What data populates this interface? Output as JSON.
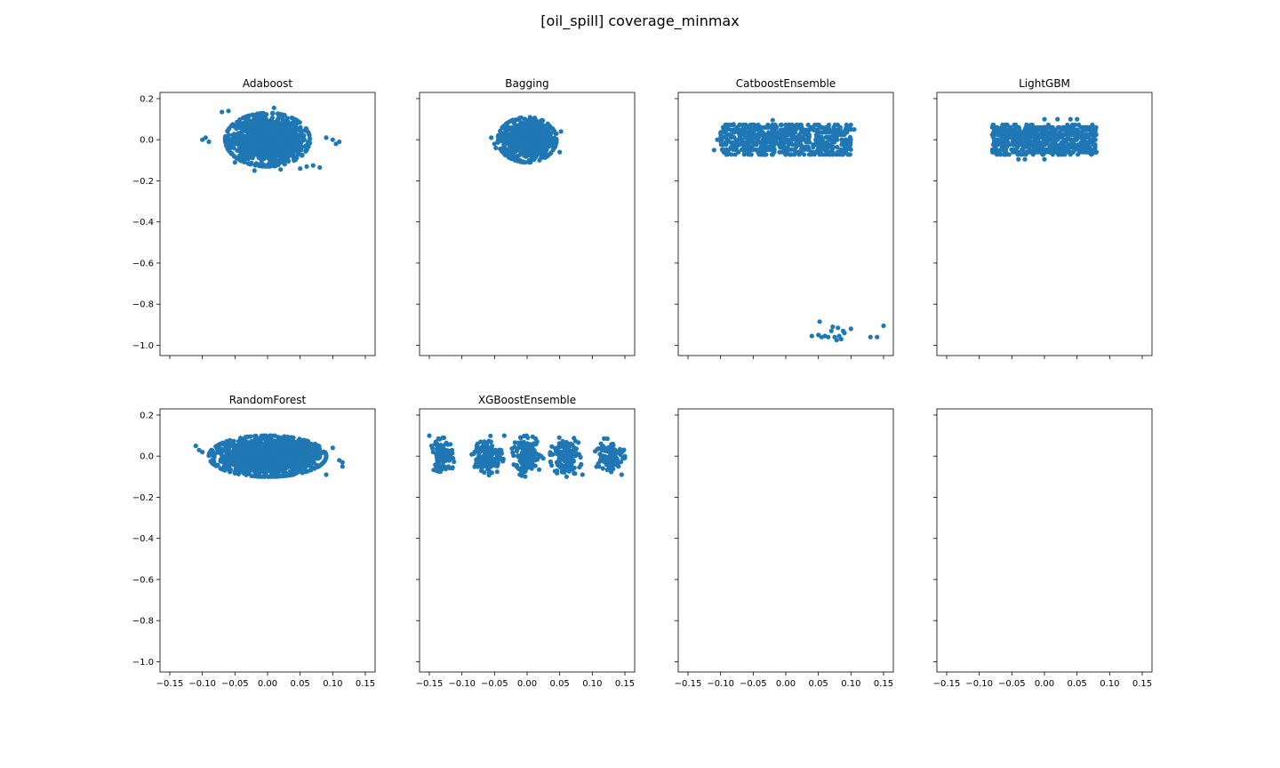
{
  "figure": {
    "suptitle": "[oil_spill] coverage_minmax"
  },
  "chart_data": {
    "type": "scatter",
    "layout": "2 rows x 4 columns, shared x and y axes",
    "xlim": [
      -0.165,
      0.165
    ],
    "ylim": [
      -1.05,
      0.23
    ],
    "x_ticks": [
      -0.15,
      -0.1,
      -0.05,
      0.0,
      0.05,
      0.1,
      0.15
    ],
    "x_tick_labels": [
      "−0.15",
      "−0.10",
      "−0.05",
      "0.00",
      "0.05",
      "0.10",
      "0.15"
    ],
    "y_ticks": [
      0.2,
      0.0,
      -0.2,
      -0.4,
      -0.6,
      -0.8,
      -1.0
    ],
    "y_tick_labels": [
      "0.2",
      "0.0",
      "−0.2",
      "−0.4",
      "−0.6",
      "−0.8",
      "−1.0"
    ],
    "marker_color": "#1f77b4",
    "grid": false,
    "legend": "none",
    "panels": [
      {
        "title": "Adaboost",
        "clusters": [
          {
            "shape": "ellipse",
            "cx": 0.0,
            "cy": 0.0,
            "rx": 0.065,
            "ry": 0.13,
            "n": 1400
          }
        ],
        "points": [
          [
            -0.1,
            0.0
          ],
          [
            -0.095,
            0.01
          ],
          [
            -0.09,
            -0.01
          ],
          [
            -0.07,
            0.135
          ],
          [
            -0.06,
            0.14
          ],
          [
            0.01,
            0.155
          ],
          [
            0.1,
            0.0
          ],
          [
            0.11,
            -0.01
          ],
          [
            0.105,
            -0.02
          ],
          [
            0.09,
            0.01
          ],
          [
            0.06,
            -0.13
          ],
          [
            0.05,
            -0.14
          ],
          [
            -0.02,
            -0.15
          ],
          [
            0.02,
            -0.145
          ],
          [
            0.08,
            -0.135
          ],
          [
            0.07,
            -0.125
          ],
          [
            -0.05,
            -0.11
          ]
        ]
      },
      {
        "title": "Bagging",
        "clusters": [
          {
            "shape": "ellipse",
            "cx": 0.0,
            "cy": 0.0,
            "rx": 0.045,
            "ry": 0.11,
            "n": 1000
          }
        ],
        "points": [
          [
            -0.055,
            0.01
          ],
          [
            -0.05,
            -0.02
          ],
          [
            0.052,
            0.04
          ],
          [
            0.05,
            -0.06
          ],
          [
            0.045,
            0.03
          ],
          [
            -0.048,
            -0.04
          ]
        ]
      },
      {
        "title": "CatboostEnsemble",
        "clusters": [
          {
            "shape": "rect",
            "x0": -0.1,
            "x1": 0.1,
            "y0": -0.075,
            "y1": 0.075,
            "n": 700
          }
        ],
        "points": [
          [
            -0.11,
            -0.05
          ],
          [
            -0.105,
            0.0
          ],
          [
            -0.1,
            0.03
          ],
          [
            -0.09,
            0.07
          ],
          [
            -0.08,
            0.075
          ],
          [
            -0.02,
            0.095
          ],
          [
            0.1,
            0.05
          ],
          [
            0.105,
            0.05
          ],
          [
            0.09,
            0.03
          ],
          [
            0.07,
            -0.07
          ],
          [
            0.065,
            -0.065
          ],
          [
            0.04,
            -0.955
          ],
          [
            0.05,
            -0.95
          ],
          [
            0.055,
            -0.96
          ],
          [
            0.06,
            -0.955
          ],
          [
            0.065,
            -0.96
          ],
          [
            0.07,
            -0.93
          ],
          [
            0.072,
            -0.91
          ],
          [
            0.08,
            -0.915
          ],
          [
            0.082,
            -0.955
          ],
          [
            0.085,
            -0.97
          ],
          [
            0.088,
            -0.93
          ],
          [
            0.09,
            -0.94
          ],
          [
            0.1,
            -0.92
          ],
          [
            0.13,
            -0.96
          ],
          [
            0.14,
            -0.96
          ],
          [
            0.15,
            -0.905
          ],
          [
            0.052,
            -0.885
          ],
          [
            0.075,
            -0.96
          ],
          [
            0.078,
            -0.975
          ]
        ]
      },
      {
        "title": "LightGBM",
        "clusters": [
          {
            "shape": "rect",
            "x0": -0.08,
            "x1": 0.08,
            "y0": -0.07,
            "y1": 0.07,
            "n": 700
          }
        ],
        "points": [
          [
            -0.08,
            0.06
          ],
          [
            -0.075,
            0.055
          ],
          [
            0.0,
            0.1
          ],
          [
            0.02,
            0.1
          ],
          [
            0.04,
            0.1
          ],
          [
            0.05,
            0.1
          ],
          [
            -0.04,
            -0.095
          ],
          [
            -0.03,
            -0.095
          ],
          [
            0.0,
            -0.095
          ],
          [
            0.07,
            -0.065
          ],
          [
            0.075,
            -0.065
          ],
          [
            0.065,
            -0.06
          ]
        ]
      },
      {
        "title": "RandomForest",
        "clusters": [
          {
            "shape": "ellipse",
            "cx": 0.0,
            "cy": 0.0,
            "rx": 0.09,
            "ry": 0.1,
            "n": 1800
          }
        ],
        "points": [
          [
            -0.11,
            0.05
          ],
          [
            -0.105,
            0.03
          ],
          [
            -0.1,
            0.02
          ],
          [
            0.115,
            -0.03
          ],
          [
            0.115,
            -0.05
          ],
          [
            0.11,
            -0.02
          ],
          [
            0.1,
            0.04
          ],
          [
            0.09,
            -0.09
          ]
        ]
      },
      {
        "title": "XGBoostEnsemble",
        "clusters": [
          {
            "shape": "ellipse",
            "cx": -0.13,
            "cy": 0.0,
            "rx": 0.02,
            "ry": 0.09,
            "n": 110
          },
          {
            "shape": "ellipse",
            "cx": -0.06,
            "cy": 0.0,
            "rx": 0.025,
            "ry": 0.1,
            "n": 140
          },
          {
            "shape": "ellipse",
            "cx": 0.0,
            "cy": 0.0,
            "rx": 0.025,
            "ry": 0.1,
            "n": 140
          },
          {
            "shape": "ellipse",
            "cx": 0.06,
            "cy": 0.0,
            "rx": 0.025,
            "ry": 0.1,
            "n": 140
          },
          {
            "shape": "ellipse",
            "cx": 0.125,
            "cy": 0.0,
            "rx": 0.025,
            "ry": 0.09,
            "n": 120
          }
        ],
        "points": [
          [
            -0.15,
            0.1
          ],
          [
            -0.14,
            0.07
          ],
          [
            0.145,
            -0.09
          ],
          [
            0.14,
            -0.05
          ],
          [
            -0.035,
            0.1
          ],
          [
            0.085,
            -0.09
          ]
        ]
      },
      {
        "title": "",
        "clusters": [],
        "points": []
      },
      {
        "title": "",
        "clusters": [],
        "points": []
      }
    ]
  }
}
